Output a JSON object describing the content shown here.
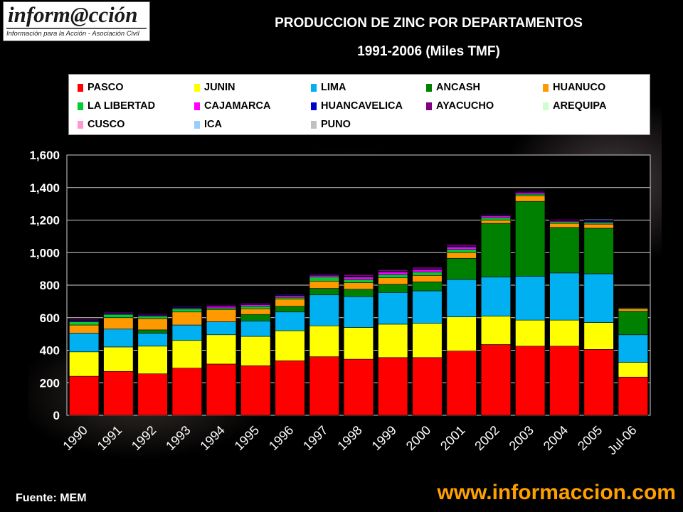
{
  "logo": {
    "name": "inform@cción",
    "tagline": "Información para la Acción - Asociación Civil"
  },
  "title_line1": "PRODUCCION  DE ZINC POR DEPARTAMENTOS",
  "title_line2": "1991-2006 (Miles TMF)",
  "source": "Fuente: MEM",
  "website": "www.informaccion.com",
  "chart_data": {
    "type": "bar",
    "stacked": true,
    "title": "PRODUCCION  DE ZINC POR DEPARTAMENTOS 1991-2006 (Miles TMF)",
    "xlabel": "",
    "ylabel": "",
    "ylim": [
      0,
      1600
    ],
    "yticks": [
      "0",
      "200",
      "400",
      "600",
      "800",
      "1,000",
      "1,200",
      "1,400",
      "1,600"
    ],
    "grid": true,
    "legend_position": "top",
    "categories": [
      "1990",
      "1991",
      "1992",
      "1993",
      "1994",
      "1995",
      "1996",
      "1997",
      "1998",
      "1999",
      "2000",
      "2001",
      "2002",
      "2003",
      "2004",
      "2005",
      "Jul-06"
    ],
    "series": [
      {
        "name": "PASCO",
        "color": "#ff0000",
        "values": [
          240,
          270,
          255,
          290,
          315,
          305,
          335,
          360,
          345,
          355,
          355,
          395,
          435,
          425,
          425,
          405,
          235
        ]
      },
      {
        "name": "JUNIN",
        "color": "#ffff00",
        "values": [
          150,
          150,
          170,
          170,
          180,
          180,
          185,
          190,
          195,
          205,
          210,
          210,
          175,
          160,
          160,
          165,
          90
        ]
      },
      {
        "name": "LIMA",
        "color": "#00b0f0",
        "values": [
          115,
          110,
          80,
          95,
          80,
          95,
          115,
          190,
          190,
          195,
          200,
          230,
          240,
          270,
          290,
          300,
          170
        ]
      },
      {
        "name": "ANCASH",
        "color": "#008000",
        "values": [
          0,
          0,
          20,
          0,
          0,
          40,
          35,
          40,
          45,
          50,
          55,
          130,
          330,
          460,
          280,
          280,
          145
        ]
      },
      {
        "name": "HUANUCO",
        "color": "#ff9900",
        "values": [
          50,
          70,
          70,
          80,
          75,
          35,
          45,
          45,
          40,
          40,
          40,
          35,
          20,
          35,
          25,
          25,
          15
        ]
      },
      {
        "name": "LA LIBERTAD",
        "color": "#00cc33",
        "values": [
          20,
          20,
          15,
          20,
          10,
          15,
          10,
          25,
          20,
          20,
          20,
          20,
          15,
          10,
          10,
          10,
          5
        ]
      },
      {
        "name": "CAJAMARCA",
        "color": "#ff00ff",
        "values": [
          5,
          5,
          5,
          5,
          10,
          10,
          10,
          10,
          15,
          15,
          15,
          15,
          10,
          10,
          5,
          5,
          3
        ]
      },
      {
        "name": "HUANCAVELICA",
        "color": "#0000cc",
        "values": [
          5,
          5,
          5,
          5,
          5,
          5,
          5,
          5,
          5,
          5,
          5,
          5,
          5,
          5,
          5,
          5,
          3
        ]
      },
      {
        "name": "AYACUCHO",
        "color": "#800080",
        "values": [
          5,
          5,
          5,
          5,
          5,
          5,
          5,
          5,
          10,
          10,
          10,
          10,
          5,
          5,
          5,
          5,
          2
        ]
      },
      {
        "name": "AREQUIPA",
        "color": "#ccffcc",
        "values": [
          0,
          0,
          0,
          0,
          0,
          0,
          0,
          0,
          0,
          0,
          0,
          0,
          0,
          0,
          0,
          0,
          0
        ]
      },
      {
        "name": "CUSCO",
        "color": "#ff99cc",
        "values": [
          0,
          0,
          0,
          0,
          0,
          0,
          0,
          0,
          0,
          0,
          0,
          0,
          0,
          0,
          0,
          0,
          0
        ]
      },
      {
        "name": "ICA",
        "color": "#99ccff",
        "values": [
          0,
          0,
          0,
          0,
          0,
          0,
          0,
          0,
          0,
          0,
          0,
          0,
          0,
          0,
          0,
          5,
          0
        ]
      },
      {
        "name": "PUNO",
        "color": "#c0c0c0",
        "values": [
          0,
          0,
          0,
          0,
          0,
          0,
          0,
          0,
          0,
          0,
          0,
          0,
          0,
          0,
          0,
          0,
          0
        ]
      }
    ]
  }
}
